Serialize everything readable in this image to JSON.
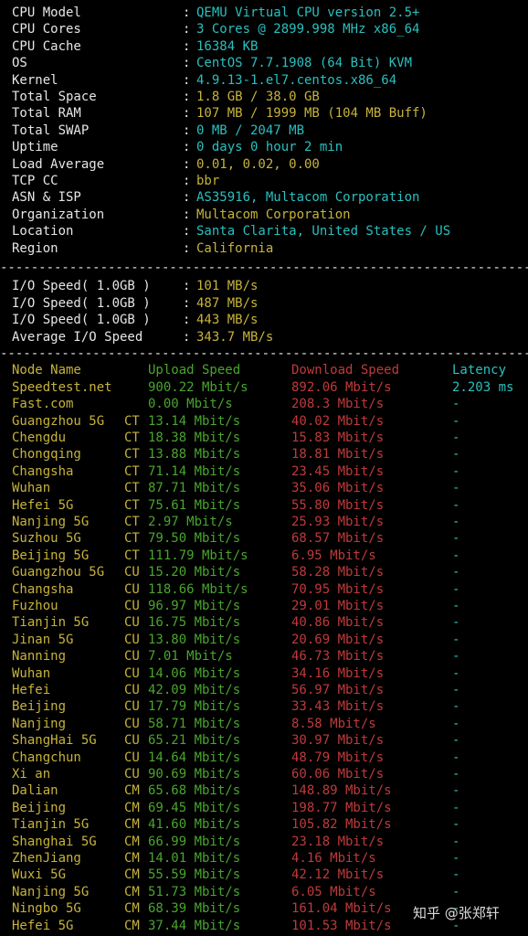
{
  "sysinfo": [
    {
      "key": "CPU Model",
      "value": "QEMU Virtual CPU version 2.5+",
      "color": "cyan"
    },
    {
      "key": "CPU Cores",
      "value": "3 Cores @ 2899.998 MHz x86_64",
      "color": "cyan"
    },
    {
      "key": "CPU Cache",
      "value": "16384 KB",
      "color": "cyan"
    },
    {
      "key": "OS",
      "value": "CentOS 7.7.1908 (64 Bit) KVM",
      "color": "cyan"
    },
    {
      "key": "Kernel",
      "value": "4.9.13-1.el7.centos.x86_64",
      "color": "cyan"
    },
    {
      "key": "Total Space",
      "value": "1.8 GB / 38.0 GB",
      "color": "yel"
    },
    {
      "key": "Total RAM",
      "value": "107 MB / 1999 MB (104 MB Buff)",
      "color": "yel"
    },
    {
      "key": "Total SWAP",
      "value": "0 MB / 2047 MB",
      "color": "cyan"
    },
    {
      "key": "Uptime",
      "value": "0 days 0 hour 2 min",
      "color": "cyan"
    },
    {
      "key": "Load Average",
      "value": "0.01, 0.02, 0.00",
      "color": "yel"
    },
    {
      "key": "TCP CC",
      "value": "bbr",
      "color": "yel"
    },
    {
      "key": "ASN & ISP",
      "value": "AS35916, Multacom Corporation",
      "color": "cyan"
    },
    {
      "key": "Organization",
      "value": "Multacom Corporation",
      "color": "yel"
    },
    {
      "key": "Location",
      "value": "Santa Clarita, United States / US",
      "color": "cyan"
    },
    {
      "key": "Region",
      "value": "California",
      "color": "yel"
    }
  ],
  "separator": "-------------------------------------------------------------------------",
  "colon": ":",
  "io": [
    {
      "key": "I/O Speed( 1.0GB )",
      "value": "101 MB/s"
    },
    {
      "key": "I/O Speed( 1.0GB )",
      "value": "487 MB/s"
    },
    {
      "key": "I/O Speed( 1.0GB )",
      "value": "443 MB/s"
    },
    {
      "key": "Average I/O Speed",
      "value": "343.7 MB/s"
    }
  ],
  "speed_header": {
    "node": "Node Name",
    "upload": "Upload Speed",
    "download": "Download Speed",
    "latency": "Latency"
  },
  "speed": [
    {
      "node": "Speedtest.net",
      "isp": "",
      "up": "900.22 Mbit/s",
      "down": "892.06 Mbit/s",
      "lat": "2.203 ms"
    },
    {
      "node": "Fast.com",
      "isp": "",
      "up": "0.00 Mbit/s",
      "down": "208.3 Mbit/s",
      "lat": "-"
    },
    {
      "node": "Guangzhou 5G",
      "isp": "CT",
      "up": "13.14 Mbit/s",
      "down": "40.02 Mbit/s",
      "lat": "-"
    },
    {
      "node": "Chengdu",
      "isp": "CT",
      "up": "18.38 Mbit/s",
      "down": "15.83 Mbit/s",
      "lat": "-"
    },
    {
      "node": "Chongqing",
      "isp": "CT",
      "up": "13.88 Mbit/s",
      "down": "18.81 Mbit/s",
      "lat": "-"
    },
    {
      "node": "Changsha",
      "isp": "CT",
      "up": "71.14 Mbit/s",
      "down": "23.45 Mbit/s",
      "lat": "-"
    },
    {
      "node": "Wuhan",
      "isp": "CT",
      "up": "87.71 Mbit/s",
      "down": "35.06 Mbit/s",
      "lat": "-"
    },
    {
      "node": "Hefei 5G",
      "isp": "CT",
      "up": "75.61 Mbit/s",
      "down": "55.80 Mbit/s",
      "lat": "-"
    },
    {
      "node": "Nanjing 5G",
      "isp": "CT",
      "up": "2.97 Mbit/s",
      "down": "25.93 Mbit/s",
      "lat": "-"
    },
    {
      "node": "Suzhou 5G",
      "isp": "CT",
      "up": "79.50 Mbit/s",
      "down": "68.57 Mbit/s",
      "lat": "-"
    },
    {
      "node": "Beijing 5G",
      "isp": "CT",
      "up": "111.79 Mbit/s",
      "down": "6.95 Mbit/s",
      "lat": "-"
    },
    {
      "node": "Guangzhou 5G",
      "isp": "CU",
      "up": "15.20 Mbit/s",
      "down": "58.28 Mbit/s",
      "lat": "-"
    },
    {
      "node": "Changsha",
      "isp": "CU",
      "up": "118.66 Mbit/s",
      "down": "70.95 Mbit/s",
      "lat": "-"
    },
    {
      "node": "Fuzhou",
      "isp": "CU",
      "up": "96.97 Mbit/s",
      "down": "29.01 Mbit/s",
      "lat": "-"
    },
    {
      "node": "Tianjin 5G",
      "isp": "CU",
      "up": "16.75 Mbit/s",
      "down": "40.86 Mbit/s",
      "lat": "-"
    },
    {
      "node": "Jinan 5G",
      "isp": "CU",
      "up": "13.80 Mbit/s",
      "down": "20.69 Mbit/s",
      "lat": "-"
    },
    {
      "node": "Nanning",
      "isp": "CU",
      "up": "7.01 Mbit/s",
      "down": "46.73 Mbit/s",
      "lat": "-"
    },
    {
      "node": "Wuhan",
      "isp": "CU",
      "up": "14.06 Mbit/s",
      "down": "34.16 Mbit/s",
      "lat": "-"
    },
    {
      "node": "Hefei",
      "isp": "CU",
      "up": "42.09 Mbit/s",
      "down": "56.97 Mbit/s",
      "lat": "-"
    },
    {
      "node": "Beijing",
      "isp": "CU",
      "up": "17.79 Mbit/s",
      "down": "33.43 Mbit/s",
      "lat": "-"
    },
    {
      "node": "Nanjing",
      "isp": "CU",
      "up": "58.71 Mbit/s",
      "down": "8.58 Mbit/s",
      "lat": "-"
    },
    {
      "node": "ShangHai 5G",
      "isp": "CU",
      "up": "65.21 Mbit/s",
      "down": "30.97 Mbit/s",
      "lat": "-"
    },
    {
      "node": "Changchun",
      "isp": "CU",
      "up": "14.64 Mbit/s",
      "down": "48.79 Mbit/s",
      "lat": "-"
    },
    {
      "node": "Xi an",
      "isp": "CU",
      "up": "90.69 Mbit/s",
      "down": "60.06 Mbit/s",
      "lat": "-"
    },
    {
      "node": "Dalian",
      "isp": "CM",
      "up": "65.68 Mbit/s",
      "down": "148.89 Mbit/s",
      "lat": "-"
    },
    {
      "node": "Beijing",
      "isp": "CM",
      "up": "69.45 Mbit/s",
      "down": "198.77 Mbit/s",
      "lat": "-"
    },
    {
      "node": "Tianjin 5G",
      "isp": "CM",
      "up": "41.60 Mbit/s",
      "down": "105.82 Mbit/s",
      "lat": "-"
    },
    {
      "node": "Shanghai 5G",
      "isp": "CM",
      "up": "66.99 Mbit/s",
      "down": "23.18 Mbit/s",
      "lat": "-"
    },
    {
      "node": "ZhenJiang",
      "isp": "CM",
      "up": "14.01 Mbit/s",
      "down": "4.16 Mbit/s",
      "lat": "-"
    },
    {
      "node": "Wuxi 5G",
      "isp": "CM",
      "up": "55.59 Mbit/s",
      "down": "42.12 Mbit/s",
      "lat": "-"
    },
    {
      "node": "Nanjing 5G",
      "isp": "CM",
      "up": "51.73 Mbit/s",
      "down": "6.05 Mbit/s",
      "lat": "-"
    },
    {
      "node": "Ningbo 5G",
      "isp": "CM",
      "up": "68.39 Mbit/s",
      "down": "161.04 Mbit/s",
      "lat": "-"
    },
    {
      "node": "Hefei 5G",
      "isp": "CM",
      "up": "37.44 Mbit/s",
      "down": "101.53 Mbit/s",
      "lat": "-"
    }
  ],
  "watermark": "知乎 @张郑轩",
  "colors": {
    "cyan": "#2bbfbf",
    "yellow": "#c7b33c",
    "green": "#4aa52e",
    "red": "#c03a3a",
    "bg": "#000000"
  }
}
